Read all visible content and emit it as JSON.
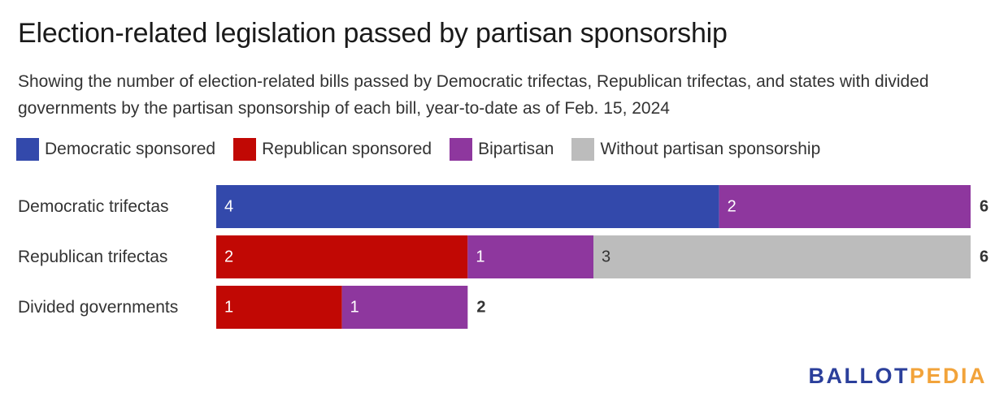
{
  "chart_data": {
    "type": "bar",
    "orientation": "horizontal",
    "stacked": true,
    "title": "Election-related legislation passed by partisan sponsorship",
    "subtitle": "Showing the number of election-related bills passed by Democratic trifectas, Republican trifectas, and states with divided governments by the partisan sponsorship of each bill, year-to-date as of Feb. 15, 2024",
    "categories": [
      "Democratic trifectas",
      "Republican trifectas",
      "Divided governments"
    ],
    "series": [
      {
        "name": "Democratic sponsored",
        "color": "#3349ab",
        "text_color": "#ffffff",
        "values": [
          4,
          0,
          0
        ]
      },
      {
        "name": "Republican sponsored",
        "color": "#c10804",
        "text_color": "#ffffff",
        "values": [
          0,
          2,
          1
        ]
      },
      {
        "name": "Bipartisan",
        "color": "#8e379e",
        "text_color": "#ffffff",
        "values": [
          2,
          1,
          1
        ]
      },
      {
        "name": "Without partisan sponsorship",
        "color": "#bcbcbc",
        "text_color": "#333333",
        "values": [
          0,
          3,
          0
        ]
      }
    ],
    "totals": [
      6,
      6,
      2
    ],
    "xlim": [
      0,
      6
    ],
    "grid": false,
    "legend": "top"
  },
  "logo": {
    "part1": "BALLOT",
    "part2": "PEDIA"
  }
}
